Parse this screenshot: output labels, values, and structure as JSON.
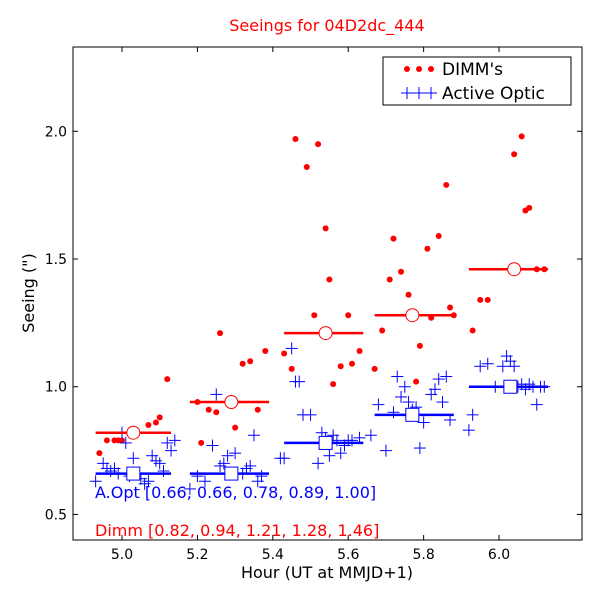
{
  "chart_data": {
    "type": "scatter",
    "title": "Seeings for 04D2dc_444",
    "xlabel": "Hour (UT at MMJD+1)",
    "ylabel": "Seeing (\")",
    "xlim": [
      4.87,
      6.22
    ],
    "ylim": [
      0.4,
      2.33
    ],
    "x_ticks": [
      "5.0",
      "5.2",
      "5.4",
      "5.6",
      "5.8",
      "6.0"
    ],
    "x_tick_values": [
      5.0,
      5.2,
      5.4,
      5.6,
      5.8,
      6.0
    ],
    "y_ticks": [
      "0.5",
      "1.0",
      "1.5",
      "2.0"
    ],
    "y_tick_values": [
      0.5,
      1.0,
      1.5,
      2.0
    ],
    "grid": false,
    "legend_position": "top-right",
    "colors": {
      "dimm": "#ff0000",
      "active_optic": "#0000ff"
    },
    "series": [
      {
        "name": "DIMM's",
        "marker": "dot",
        "color": "#ff0000",
        "x": [
          4.94,
          4.96,
          4.98,
          4.99,
          5.0,
          5.07,
          5.09,
          5.1,
          5.12,
          5.2,
          5.21,
          5.23,
          5.25,
          5.26,
          5.3,
          5.32,
          5.34,
          5.36,
          5.38,
          5.43,
          5.45,
          5.46,
          5.49,
          5.51,
          5.52,
          5.54,
          5.55,
          5.56,
          5.58,
          5.6,
          5.61,
          5.63,
          5.67,
          5.69,
          5.71,
          5.72,
          5.74,
          5.76,
          5.78,
          5.79,
          5.81,
          5.82,
          5.84,
          5.86,
          5.87,
          5.88,
          5.93,
          5.95,
          5.97,
          6.04,
          6.06,
          6.07,
          6.08,
          6.1,
          6.12
        ],
        "y": [
          0.74,
          0.79,
          0.79,
          0.79,
          0.79,
          0.85,
          0.86,
          0.88,
          1.03,
          0.94,
          0.78,
          0.91,
          0.9,
          1.21,
          0.84,
          1.09,
          1.1,
          0.91,
          1.14,
          1.13,
          1.07,
          1.97,
          1.86,
          1.28,
          1.95,
          1.62,
          1.42,
          1.01,
          1.08,
          1.28,
          1.09,
          1.14,
          1.07,
          1.22,
          1.42,
          1.58,
          1.45,
          1.36,
          1.02,
          1.16,
          1.54,
          1.27,
          1.59,
          1.79,
          1.31,
          1.28,
          1.22,
          1.34,
          1.34,
          1.91,
          1.98,
          1.69,
          1.7,
          1.46,
          1.46
        ]
      },
      {
        "name": "Active Optic",
        "marker": "plus",
        "color": "#0000ff",
        "x": [
          4.93,
          4.95,
          4.96,
          4.97,
          4.98,
          4.99,
          5.0,
          5.01,
          5.02,
          5.03,
          5.05,
          5.06,
          5.07,
          5.08,
          5.09,
          5.1,
          5.11,
          5.12,
          5.13,
          5.14,
          5.18,
          5.2,
          5.22,
          5.24,
          5.25,
          5.26,
          5.27,
          5.28,
          5.3,
          5.32,
          5.33,
          5.34,
          5.35,
          5.36,
          5.37,
          5.42,
          5.43,
          5.45,
          5.46,
          5.47,
          5.48,
          5.5,
          5.52,
          5.53,
          5.54,
          5.55,
          5.56,
          5.57,
          5.58,
          5.59,
          5.6,
          5.61,
          5.63,
          5.66,
          5.68,
          5.7,
          5.72,
          5.73,
          5.74,
          5.75,
          5.76,
          5.77,
          5.78,
          5.79,
          5.8,
          5.82,
          5.83,
          5.84,
          5.85,
          5.86,
          5.87,
          5.92,
          5.93,
          5.95,
          5.97,
          5.99,
          6.01,
          6.02,
          6.03,
          6.04,
          6.05,
          6.06,
          6.07,
          6.08,
          6.09,
          6.1,
          6.11,
          6.12
        ],
        "y": [
          0.63,
          0.7,
          0.68,
          0.67,
          0.68,
          0.66,
          0.82,
          0.78,
          0.65,
          0.72,
          0.64,
          0.62,
          0.63,
          0.73,
          0.71,
          0.7,
          0.67,
          0.78,
          0.75,
          0.79,
          0.6,
          0.65,
          0.63,
          0.77,
          0.97,
          0.69,
          0.7,
          0.73,
          0.74,
          0.66,
          0.68,
          0.69,
          0.81,
          0.63,
          0.65,
          0.72,
          0.72,
          1.15,
          1.02,
          1.02,
          0.89,
          0.89,
          0.7,
          0.82,
          0.8,
          0.73,
          0.81,
          0.79,
          0.74,
          0.77,
          0.79,
          0.79,
          0.8,
          0.81,
          0.93,
          0.75,
          0.9,
          1.04,
          0.96,
          1.0,
          0.94,
          0.91,
          0.92,
          0.76,
          0.86,
          0.97,
          0.99,
          1.03,
          0.94,
          1.04,
          0.87,
          0.83,
          0.89,
          1.08,
          1.09,
          1.0,
          1.08,
          1.12,
          1.1,
          1.08,
          1.0,
          1.01,
          0.99,
          1.01,
          1.0,
          0.93,
          1.0,
          1.0
        ]
      }
    ],
    "dimm_bins": [
      {
        "x": 5.03,
        "y": 0.82,
        "xmin": 4.93,
        "xmax": 5.13
      },
      {
        "x": 5.29,
        "y": 0.94,
        "xmin": 5.18,
        "xmax": 5.39
      },
      {
        "x": 5.54,
        "y": 1.21,
        "xmin": 5.43,
        "xmax": 5.64
      },
      {
        "x": 5.77,
        "y": 1.28,
        "xmin": 5.67,
        "xmax": 5.88
      },
      {
        "x": 6.04,
        "y": 1.46,
        "xmin": 5.92,
        "xmax": 6.13
      }
    ],
    "ao_bins": [
      {
        "x": 5.03,
        "y": 0.66,
        "xmin": 4.93,
        "xmax": 5.13
      },
      {
        "x": 5.29,
        "y": 0.66,
        "xmin": 5.18,
        "xmax": 5.39
      },
      {
        "x": 5.54,
        "y": 0.78,
        "xmin": 5.43,
        "xmax": 5.64
      },
      {
        "x": 5.77,
        "y": 0.89,
        "xmin": 5.67,
        "xmax": 5.88
      },
      {
        "x": 6.03,
        "y": 1.0,
        "xmin": 5.92,
        "xmax": 6.13
      }
    ],
    "legend": [
      {
        "label": "DIMM's",
        "color": "#ff0000",
        "marker": "dot"
      },
      {
        "label": "Active Optic",
        "color": "#0000ff",
        "marker": "plus"
      }
    ],
    "annotations": {
      "ao": "A.Opt [0.66, 0.66, 0.78, 0.89, 1.00]",
      "dimm": "Dimm [0.82, 0.94, 1.21, 1.28, 1.46]"
    }
  }
}
